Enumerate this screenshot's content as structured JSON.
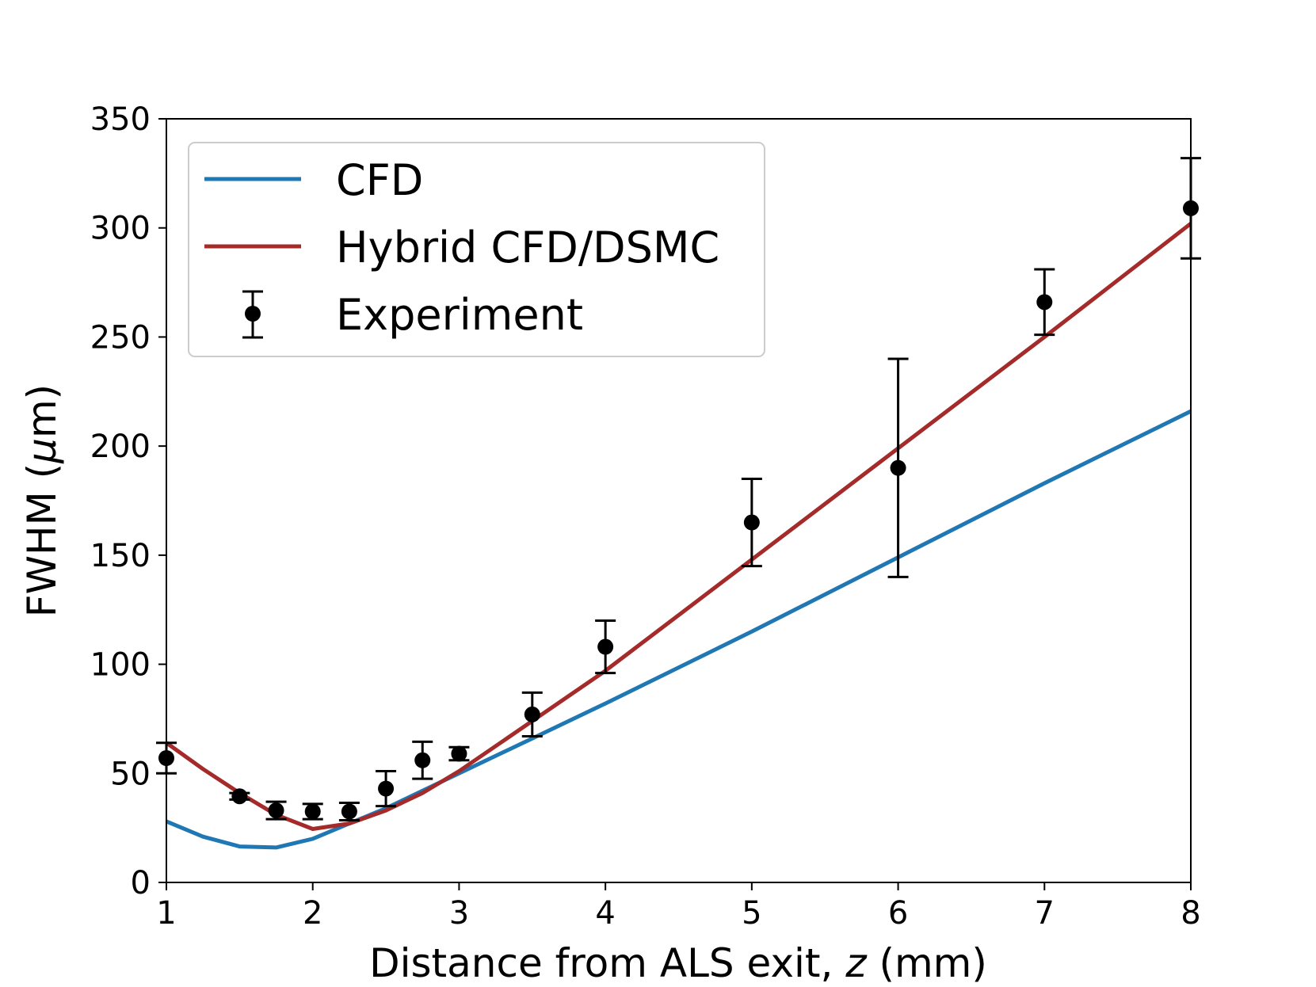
{
  "chart_data": {
    "type": "line",
    "title": "",
    "xlabel_prefix": "Distance from ALS exit, ",
    "xlabel_var": "z",
    "xlabel_suffix": " (mm)",
    "ylabel_prefix": "FWHM (",
    "ylabel_var": "μ",
    "ylabel_suffix": "m)",
    "xlim": [
      1,
      8
    ],
    "ylim": [
      0,
      350
    ],
    "xticks": [
      "1",
      "2",
      "3",
      "4",
      "5",
      "6",
      "7",
      "8"
    ],
    "yticks": [
      "0",
      "50",
      "100",
      "150",
      "200",
      "250",
      "300",
      "350"
    ],
    "grid": false,
    "legend_position": "top-left",
    "colors": {
      "cfd": "#1f77b4",
      "hybrid": "#a52a2a",
      "experiment": "#000000"
    },
    "series": [
      {
        "name": "CFD",
        "kind": "line",
        "x": [
          1,
          1.25,
          1.5,
          1.75,
          2,
          2.25,
          2.5,
          2.75,
          3,
          3.5,
          4,
          5,
          6,
          7,
          8
        ],
        "y": [
          28,
          21,
          16.5,
          16,
          20,
          27,
          34,
          42,
          50,
          66,
          82,
          115,
          149,
          183,
          216
        ]
      },
      {
        "name": "Hybrid CFD/DSMC",
        "kind": "line",
        "x": [
          1,
          1.25,
          1.5,
          1.75,
          2,
          2.25,
          2.5,
          2.75,
          3,
          3.5,
          4,
          5,
          6,
          7,
          8
        ],
        "y": [
          64,
          52,
          41,
          31,
          24.5,
          27,
          33,
          41,
          51,
          74,
          97,
          148,
          199,
          250,
          302
        ]
      },
      {
        "name": "Experiment",
        "kind": "errorbar",
        "x": [
          1,
          1.5,
          1.75,
          2,
          2.25,
          2.5,
          2.75,
          3,
          3.5,
          4,
          5,
          6,
          7,
          8
        ],
        "y": [
          57,
          39.5,
          33,
          32.5,
          32.5,
          43,
          56,
          59,
          77,
          108,
          165,
          190,
          266,
          309
        ],
        "err": [
          7,
          1.5,
          4,
          3.5,
          4,
          8,
          8.5,
          3,
          10,
          12,
          20,
          50,
          15,
          23
        ]
      }
    ]
  }
}
